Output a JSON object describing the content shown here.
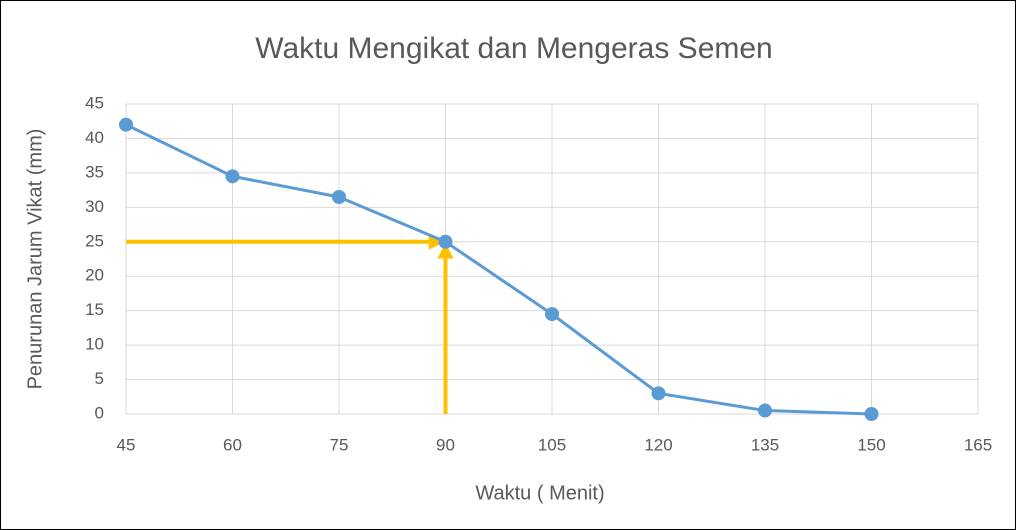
{
  "chart_data": {
    "type": "line",
    "title": "Waktu Mengikat dan Mengeras Semen",
    "x_label": "Waktu ( Menit)",
    "y_label": "Penurunan Jarum Vikat (mm)",
    "x": [
      45,
      60,
      75,
      90,
      105,
      120,
      135,
      150
    ],
    "series": [
      {
        "name": "Penurunan",
        "color": "#5b9bd5",
        "values": [
          42,
          34.5,
          31.5,
          25,
          14.5,
          3,
          0.5,
          0
        ]
      }
    ],
    "xlim": [
      45,
      165
    ],
    "xticks": [
      45,
      60,
      75,
      90,
      105,
      120,
      135,
      150,
      165
    ],
    "ylim": [
      0,
      45
    ],
    "yticks": [
      0,
      5,
      10,
      15,
      20,
      25,
      30,
      35,
      40,
      45
    ],
    "grid": true,
    "annotation_point": {
      "x": 90,
      "y": 25,
      "color": "#ffc000"
    }
  }
}
